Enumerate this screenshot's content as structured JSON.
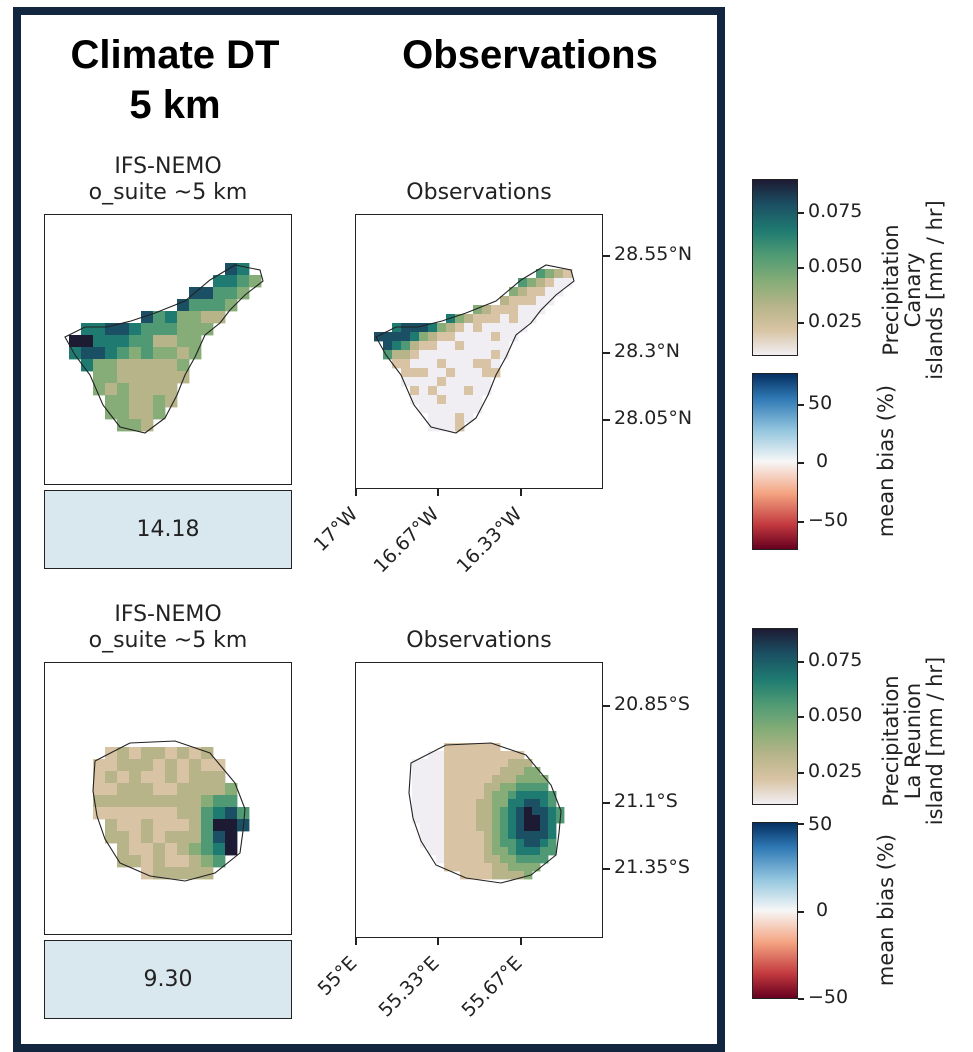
{
  "headers": {
    "left_line1": "Climate DT",
    "left_line2": "5 km",
    "right": "Observations"
  },
  "chart_data": [
    {
      "type": "heatmap",
      "region": "Canary islands",
      "model_title_line1": "IFS-NEMO",
      "model_title_line2": "o_suite ~5 km",
      "obs_title": "Observations",
      "model_bias_value": "14.18",
      "x_ticks": [
        "17°W",
        "16.67°W",
        "16.33°W"
      ],
      "y_ticks": [
        "28.55°N",
        "28.3°N",
        "28.05°N"
      ],
      "precip_colorbar": {
        "label_line1": "Precipitation",
        "label_line2": "Canary",
        "label_line3": "islands [mm / hr]",
        "ticks": [
          "0.075",
          "0.050",
          "0.025"
        ],
        "range": [
          0.0,
          0.09
        ]
      },
      "bias_colorbar": {
        "label": "mean bias (%)",
        "ticks": [
          "50",
          "0",
          "−50"
        ],
        "range": [
          -75,
          75
        ]
      }
    },
    {
      "type": "heatmap",
      "region": "La Reunion island",
      "model_title_line1": "IFS-NEMO",
      "model_title_line2": "o_suite ~5 km",
      "obs_title": "Observations",
      "model_bias_value": "9.30",
      "x_ticks": [
        "55°E",
        "55.33°E",
        "55.67°E"
      ],
      "y_ticks": [
        "20.85°S",
        "21.1°S",
        "21.35°S"
      ],
      "precip_colorbar": {
        "label_line1": "Precipitation",
        "label_line2": "La Reunion",
        "label_line3": "island [mm / hr]",
        "ticks": [
          "0.075",
          "0.050",
          "0.025"
        ],
        "range": [
          0.0,
          0.09
        ]
      },
      "bias_colorbar": {
        "label": "mean bias (%)",
        "ticks": [
          "50",
          "0",
          "−50"
        ],
        "range": [
          -50,
          50
        ]
      }
    }
  ],
  "colors": {
    "frame": "#13263f",
    "value_box": "#d9e7ef",
    "precip_scale": [
      "#f1eef3",
      "#d8c4a4",
      "#b7b48a",
      "#86ad77",
      "#4f9a74",
      "#1f7b71",
      "#1b4f63",
      "#1d1b33"
    ],
    "bias_scale": [
      "#67001f",
      "#c33a3f",
      "#f4a582",
      "#f7f7f7",
      "#92c5de",
      "#2f79b5",
      "#053061"
    ]
  }
}
